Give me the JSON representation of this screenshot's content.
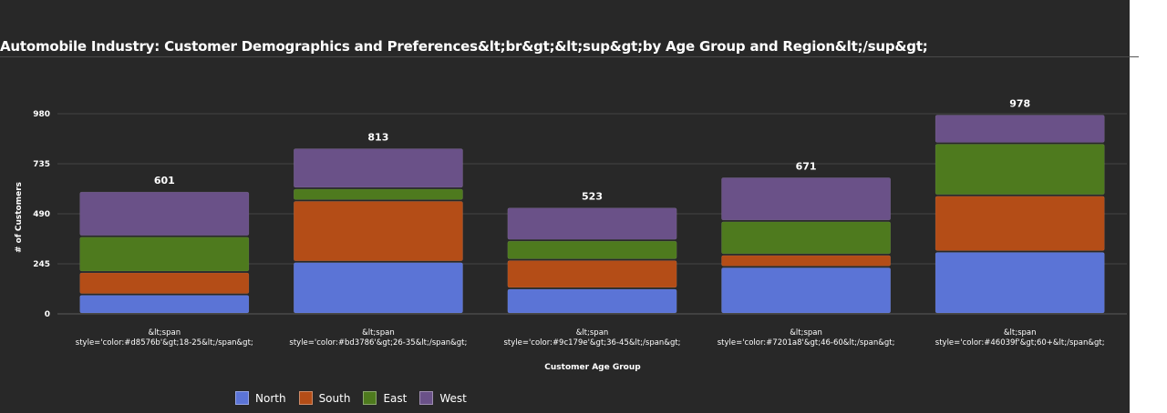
{
  "chart_data": {
    "type": "bar",
    "stacked": true,
    "title": "Automobile Industry: Customer Demographics and Preferences&lt;br&gt;&lt;sup&gt;by Age Group and Region&lt;/sup&gt;",
    "xlabel": "Customer Age Group",
    "ylabel": "# of Customers",
    "ylim": [
      0,
      980
    ],
    "yticks": [
      0,
      245,
      490,
      735,
      980
    ],
    "grid": true,
    "legend_position": "bottom",
    "categories": [
      "&lt;span style='color:#d8576b'&gt;18-25&lt;/span&gt;",
      "&lt;span style='color:#bd3786'&gt;26-35&lt;/span&gt;",
      "&lt;span style='color:#9c179e'&gt;36-45&lt;/span&gt;",
      "&lt;span style='color:#7201a8'&gt;46-60&lt;/span&gt;",
      "&lt;span style='color:#46039f'&gt;60+&lt;/span&gt;"
    ],
    "series": [
      {
        "name": "North",
        "color": "#5b74d6",
        "values": [
          95,
          255,
          125,
          230,
          305
        ]
      },
      {
        "name": "South",
        "color": "#b44d17",
        "values": [
          110,
          300,
          140,
          60,
          275
        ]
      },
      {
        "name": "East",
        "color": "#4e7a1e",
        "values": [
          175,
          60,
          95,
          165,
          255
        ]
      },
      {
        "name": "West",
        "color": "#6a5188",
        "values": [
          221,
          198,
          163,
          216,
          143
        ]
      }
    ],
    "totals": [
      601,
      813,
      523,
      671,
      978
    ]
  }
}
